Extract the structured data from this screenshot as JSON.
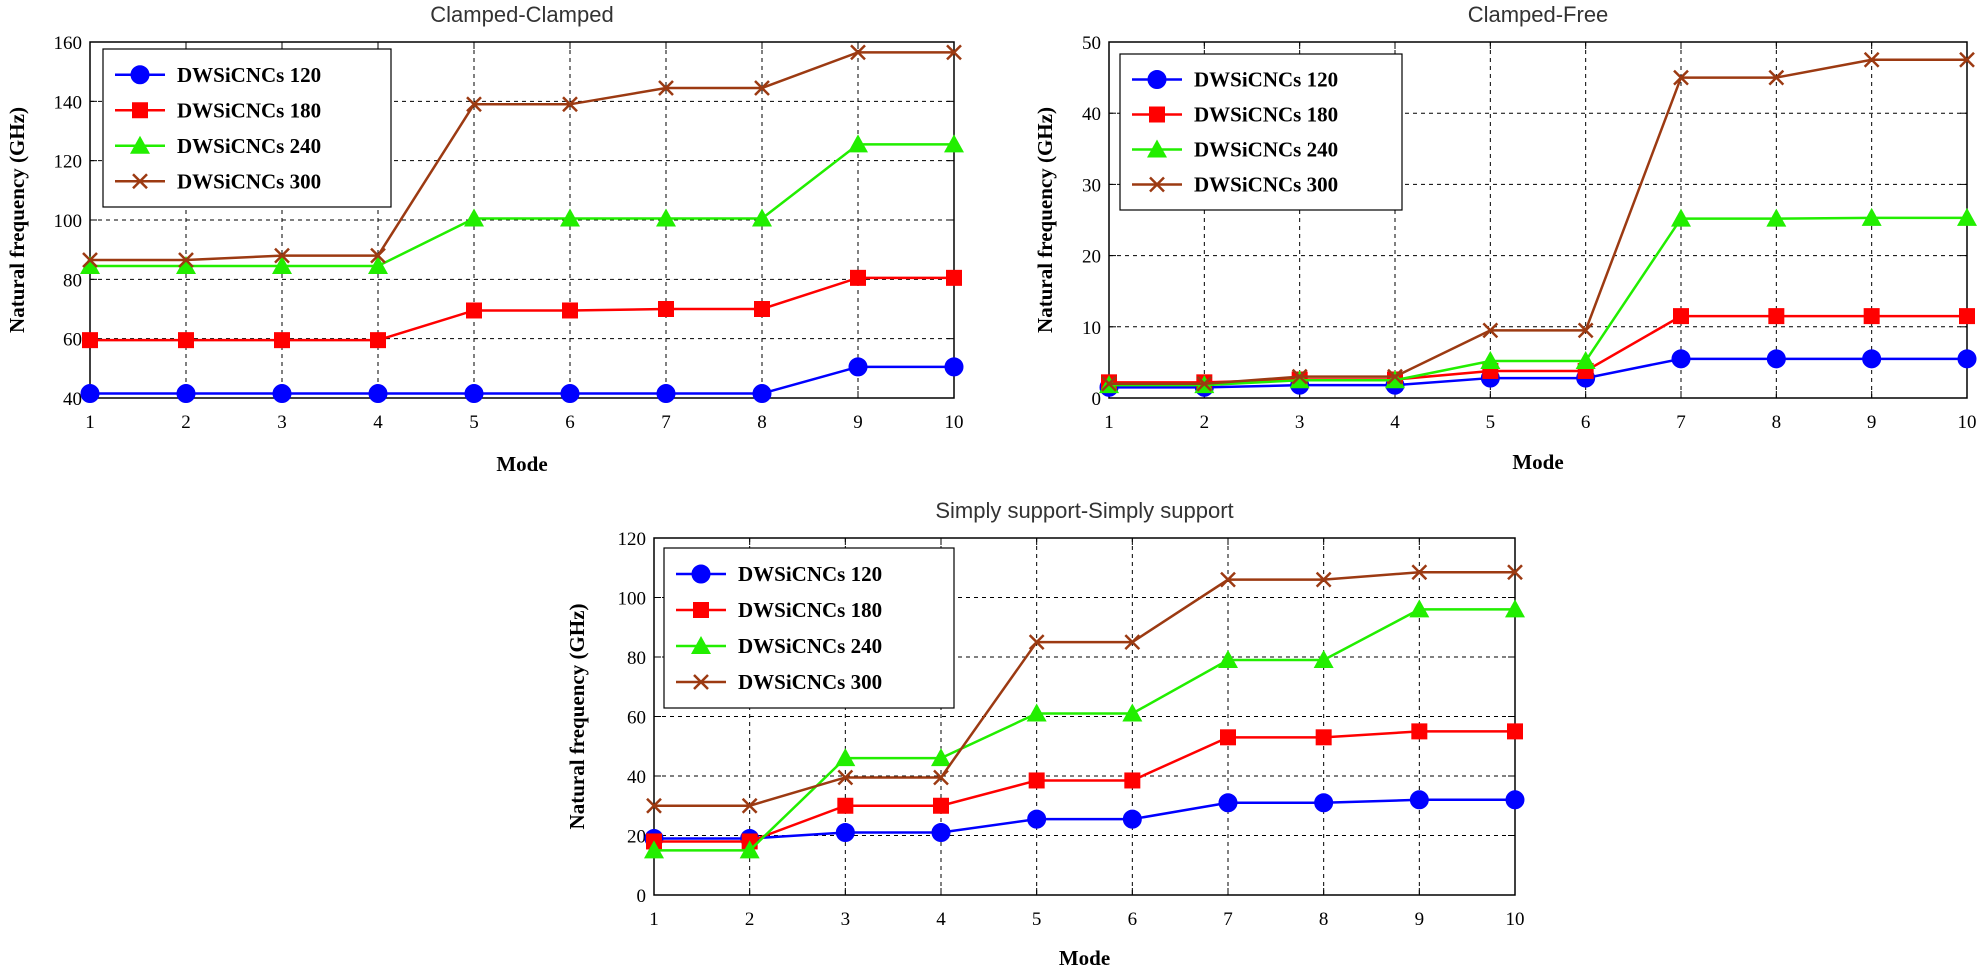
{
  "chart_data": [
    {
      "type": "line",
      "title": "Clamped-Clamped",
      "xlabel": "Mode",
      "ylabel": "Natural frequency (GHz)",
      "x": [
        1,
        2,
        3,
        4,
        5,
        6,
        7,
        8,
        9,
        10
      ],
      "xlim": [
        1,
        10
      ],
      "ylim": [
        40,
        160
      ],
      "yticks": [
        40,
        60,
        80,
        100,
        120,
        140,
        160
      ],
      "grid": true,
      "legend": "top-left",
      "series": [
        {
          "name": "DWSiCNCs 120",
          "color": "#0000ff",
          "marker": "circle",
          "values": [
            41.5,
            41.5,
            41.5,
            41.5,
            41.5,
            41.5,
            41.5,
            41.5,
            50.5,
            50.5
          ]
        },
        {
          "name": "DWSiCNCs 180",
          "color": "#ff0000",
          "marker": "square",
          "values": [
            59.5,
            59.5,
            59.5,
            59.5,
            69.5,
            69.5,
            70,
            70,
            80.5,
            80.5
          ]
        },
        {
          "name": "DWSiCNCs 240",
          "color": "#22ee00",
          "marker": "triangle",
          "values": [
            84.5,
            84.5,
            84.5,
            84.5,
            100.5,
            100.5,
            100.5,
            100.5,
            125.5,
            125.5
          ]
        },
        {
          "name": "DWSiCNCs 300",
          "color": "#9c3a12",
          "marker": "x",
          "values": [
            86.5,
            86.5,
            88,
            88,
            139,
            139,
            144.5,
            144.5,
            156.5,
            156.5
          ]
        }
      ]
    },
    {
      "type": "line",
      "title": "Clamped-Free",
      "xlabel": "Mode",
      "ylabel": "Natural frequency (GHz)",
      "x": [
        1,
        2,
        3,
        4,
        5,
        6,
        7,
        8,
        9,
        10
      ],
      "xlim": [
        1,
        10
      ],
      "ylim": [
        0,
        50
      ],
      "yticks": [
        0,
        10,
        20,
        30,
        40,
        50
      ],
      "grid": true,
      "legend": "top-left",
      "series": [
        {
          "name": "DWSiCNCs 120",
          "color": "#0000ff",
          "marker": "circle",
          "values": [
            1.5,
            1.5,
            1.8,
            1.8,
            2.8,
            2.8,
            5.5,
            5.5,
            5.5,
            5.5
          ]
        },
        {
          "name": "DWSiCNCs 180",
          "color": "#ff0000",
          "marker": "square",
          "values": [
            2.2,
            2.2,
            2.6,
            2.6,
            3.8,
            3.8,
            11.5,
            11.5,
            11.5,
            11.5
          ]
        },
        {
          "name": "DWSiCNCs 240",
          "color": "#22ee00",
          "marker": "triangle",
          "values": [
            1.8,
            1.8,
            2.5,
            2.5,
            5.2,
            5.2,
            25.2,
            25.2,
            25.3,
            25.3
          ]
        },
        {
          "name": "DWSiCNCs 300",
          "color": "#9c3a12",
          "marker": "x",
          "values": [
            2,
            2,
            3,
            3,
            9.5,
            9.5,
            45,
            45,
            47.5,
            47.5
          ]
        }
      ]
    },
    {
      "type": "line",
      "title": "Simply support-Simply support",
      "xlabel": "Mode",
      "ylabel": "Natural frequency (GHz)",
      "x": [
        1,
        2,
        3,
        4,
        5,
        6,
        7,
        8,
        9,
        10
      ],
      "xlim": [
        1,
        10
      ],
      "ylim": [
        0,
        120
      ],
      "yticks": [
        0,
        20,
        40,
        60,
        80,
        100,
        120
      ],
      "grid": true,
      "legend": "top-left",
      "series": [
        {
          "name": "DWSiCNCs 120",
          "color": "#0000ff",
          "marker": "circle",
          "values": [
            19,
            19,
            21,
            21,
            25.5,
            25.5,
            31,
            31,
            32,
            32
          ]
        },
        {
          "name": "DWSiCNCs 180",
          "color": "#ff0000",
          "marker": "square",
          "values": [
            18,
            18,
            30,
            30,
            38.5,
            38.5,
            53,
            53,
            55,
            55
          ]
        },
        {
          "name": "DWSiCNCs 240",
          "color": "#22ee00",
          "marker": "triangle",
          "values": [
            15,
            15,
            46,
            46,
            61,
            61,
            79,
            79,
            96,
            96
          ]
        },
        {
          "name": "DWSiCNCs 300",
          "color": "#9c3a12",
          "marker": "x",
          "values": [
            30,
            30,
            39.5,
            39.5,
            85,
            85,
            106,
            106,
            108.5,
            108.5
          ]
        }
      ]
    }
  ]
}
